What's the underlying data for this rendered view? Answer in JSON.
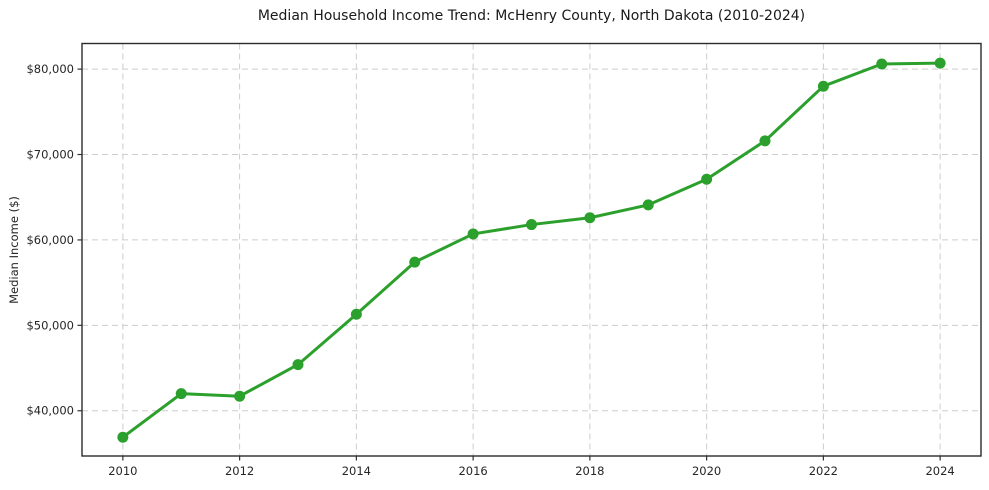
{
  "chart_data": {
    "type": "line",
    "title": "Median Household Income Trend: McHenry County, North Dakota (2010-2024)",
    "xlabel": "",
    "ylabel": "Median Income ($)",
    "x": [
      2010,
      2011,
      2012,
      2013,
      2014,
      2015,
      2016,
      2017,
      2018,
      2019,
      2020,
      2021,
      2022,
      2023,
      2024
    ],
    "values": [
      36900,
      42000,
      41700,
      45400,
      51300,
      57400,
      60700,
      61800,
      62600,
      64100,
      67100,
      71600,
      78000,
      80600,
      80700
    ],
    "xlim": [
      2009.3,
      2024.7
    ],
    "ylim": [
      34700,
      83000
    ],
    "x_ticks": [
      2010,
      2012,
      2014,
      2016,
      2018,
      2020,
      2022,
      2024
    ],
    "x_tick_labels": [
      "2010",
      "2012",
      "2014",
      "2016",
      "2018",
      "2020",
      "2022",
      "2024"
    ],
    "y_ticks": [
      40000,
      50000,
      60000,
      70000,
      80000
    ],
    "y_tick_labels": [
      "$40,000",
      "$50,000",
      "$60,000",
      "$70,000",
      "$80,000"
    ],
    "grid": true,
    "legend": "none",
    "line_color": "#2ca02c",
    "marker": "circle"
  }
}
